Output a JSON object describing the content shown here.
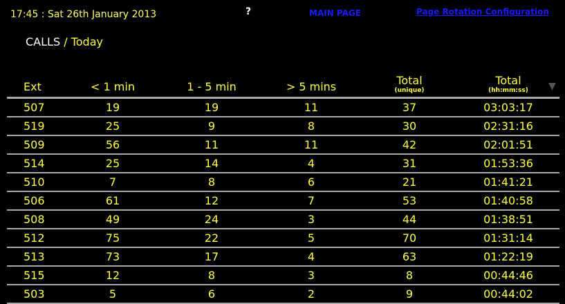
{
  "header": {
    "datetime": "17:45 : Sat 26th January 2013",
    "help": "?",
    "main_page": "MAIN PAGE",
    "rotation_config": "Page Rotation Configuration"
  },
  "title": {
    "section": "CALLS",
    "separator": "/",
    "period": "Today"
  },
  "table": {
    "columns": {
      "ext": "Ext",
      "lt1": "< 1 min",
      "b1_5": "1 - 5 min",
      "gt5": "> 5 mins",
      "total_unique": "Total",
      "total_unique_sub": "(unique)",
      "total_time": "Total",
      "total_time_sub": "(hh:mm:ss)"
    },
    "sort_icon": "sort-desc-icon",
    "rows": [
      [
        "507",
        "19",
        "19",
        "11",
        "37",
        "03:03:17"
      ],
      [
        "519",
        "25",
        "9",
        "8",
        "30",
        "02:31:16"
      ],
      [
        "509",
        "56",
        "11",
        "11",
        "42",
        "02:01:51"
      ],
      [
        "514",
        "25",
        "14",
        "4",
        "31",
        "01:53:36"
      ],
      [
        "510",
        "7",
        "8",
        "6",
        "21",
        "01:41:21"
      ],
      [
        "506",
        "61",
        "12",
        "7",
        "53",
        "01:40:58"
      ],
      [
        "508",
        "49",
        "24",
        "3",
        "44",
        "01:38:51"
      ],
      [
        "512",
        "75",
        "22",
        "5",
        "70",
        "01:31:14"
      ],
      [
        "513",
        "73",
        "17",
        "4",
        "63",
        "01:22:19"
      ],
      [
        "515",
        "12",
        "8",
        "3",
        "8",
        "00:44:46"
      ],
      [
        "503",
        "5",
        "6",
        "2",
        "9",
        "00:44:02"
      ]
    ]
  },
  "colors": {
    "background": "#000000",
    "text": "#ffff44",
    "link": "#1a1aff",
    "rule": "#aaaaaa"
  }
}
